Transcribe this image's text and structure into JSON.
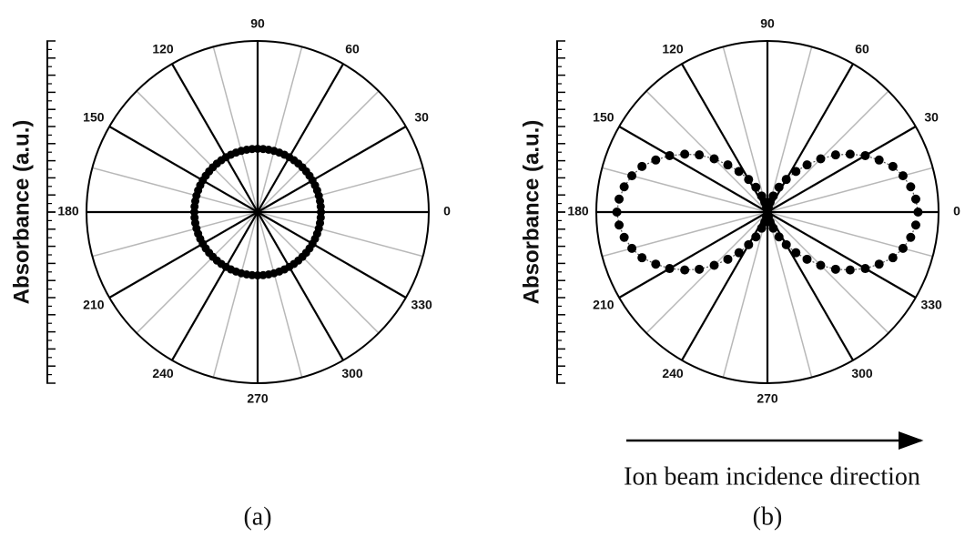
{
  "chart_data": [
    {
      "type": "polar",
      "label": "(a)",
      "y_label": "Absorbance (a.u.)",
      "rlim": [
        0,
        1
      ],
      "rticks": [
        0,
        0.1,
        0.2,
        0.3,
        0.4,
        0.5,
        0.6,
        0.7,
        0.8,
        0.9,
        1
      ],
      "rminorticks": [
        0.05,
        0.15,
        0.25,
        0.35,
        0.45,
        0.55,
        0.65,
        0.75,
        0.85,
        0.95
      ],
      "thetaticks": [
        0,
        30,
        60,
        90,
        120,
        150,
        180,
        210,
        240,
        270,
        300,
        330
      ],
      "thetaminor": [
        15,
        45,
        75,
        105,
        135,
        165,
        195,
        225,
        255,
        285,
        315,
        345
      ],
      "series": [
        {
          "marker": "dot",
          "color": "#000000",
          "theta": [
            0,
            5,
            10,
            15,
            20,
            25,
            30,
            35,
            40,
            45,
            50,
            55,
            60,
            65,
            70,
            75,
            80,
            85,
            90,
            95,
            100,
            105,
            110,
            115,
            120,
            125,
            130,
            135,
            140,
            145,
            150,
            155,
            160,
            165,
            170,
            175,
            180,
            185,
            190,
            195,
            200,
            205,
            210,
            215,
            220,
            225,
            230,
            235,
            240,
            245,
            250,
            255,
            260,
            265,
            270,
            275,
            280,
            285,
            290,
            295,
            300,
            305,
            310,
            315,
            320,
            325,
            330,
            335,
            340,
            345,
            350,
            355
          ],
          "values": [
            0.37,
            0.37,
            0.37,
            0.37,
            0.37,
            0.37,
            0.37,
            0.37,
            0.37,
            0.37,
            0.37,
            0.37,
            0.37,
            0.37,
            0.37,
            0.37,
            0.37,
            0.37,
            0.37,
            0.37,
            0.37,
            0.37,
            0.37,
            0.37,
            0.37,
            0.37,
            0.37,
            0.37,
            0.37,
            0.37,
            0.37,
            0.37,
            0.37,
            0.37,
            0.37,
            0.37,
            0.37,
            0.37,
            0.37,
            0.37,
            0.37,
            0.37,
            0.37,
            0.37,
            0.37,
            0.37,
            0.37,
            0.37,
            0.37,
            0.37,
            0.37,
            0.37,
            0.37,
            0.37,
            0.37,
            0.37,
            0.37,
            0.37,
            0.37,
            0.37,
            0.37,
            0.37,
            0.37,
            0.37,
            0.37,
            0.37,
            0.37,
            0.37,
            0.37,
            0.37,
            0.37,
            0.37
          ]
        }
      ]
    },
    {
      "type": "polar",
      "label": "(b)",
      "y_label": "Absorbance (a.u.)",
      "annotation": "Ion beam incidence direction",
      "rlim": [
        0,
        1
      ],
      "rticks": [
        0,
        0.1,
        0.2,
        0.3,
        0.4,
        0.5,
        0.6,
        0.7,
        0.8,
        0.9,
        1
      ],
      "rminorticks": [
        0.05,
        0.15,
        0.25,
        0.35,
        0.45,
        0.55,
        0.65,
        0.75,
        0.85,
        0.95
      ],
      "thetaticks": [
        0,
        30,
        60,
        90,
        120,
        150,
        180,
        210,
        240,
        270,
        300,
        330
      ],
      "thetaminor": [
        15,
        45,
        75,
        105,
        135,
        165,
        195,
        225,
        255,
        285,
        315,
        345
      ],
      "series": [
        {
          "marker": "dot-line",
          "color": "#000000",
          "theta": [
            0,
            5,
            10,
            15,
            20,
            25,
            30,
            35,
            40,
            45,
            50,
            55,
            60,
            65,
            70,
            75,
            80,
            85,
            90,
            95,
            100,
            105,
            110,
            115,
            120,
            125,
            130,
            135,
            140,
            145,
            150,
            155,
            160,
            165,
            170,
            175,
            180,
            185,
            190,
            195,
            200,
            205,
            210,
            215,
            220,
            225,
            230,
            235,
            240,
            245,
            250,
            255,
            260,
            265,
            270,
            275,
            280,
            285,
            290,
            295,
            300,
            305,
            310,
            315,
            320,
            325,
            330,
            335,
            340,
            345,
            350,
            355
          ],
          "values": [
            0.88,
            0.87,
            0.85,
            0.82,
            0.78,
            0.72,
            0.66,
            0.59,
            0.52,
            0.44,
            0.36,
            0.29,
            0.22,
            0.16,
            0.1,
            0.06,
            0.03,
            0.01,
            0,
            0.01,
            0.03,
            0.06,
            0.1,
            0.16,
            0.22,
            0.29,
            0.36,
            0.44,
            0.52,
            0.59,
            0.66,
            0.72,
            0.78,
            0.82,
            0.85,
            0.87,
            0.88,
            0.87,
            0.85,
            0.82,
            0.78,
            0.72,
            0.66,
            0.59,
            0.52,
            0.44,
            0.36,
            0.29,
            0.22,
            0.16,
            0.1,
            0.06,
            0.03,
            0.01,
            0,
            0.01,
            0.03,
            0.06,
            0.1,
            0.16,
            0.22,
            0.29,
            0.36,
            0.44,
            0.52,
            0.59,
            0.66,
            0.72,
            0.78,
            0.82,
            0.85,
            0.87
          ]
        }
      ]
    }
  ]
}
